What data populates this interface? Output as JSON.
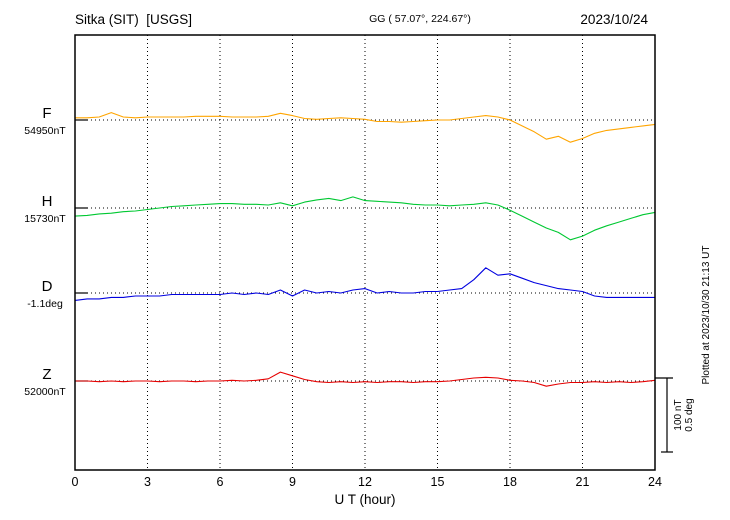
{
  "header": {
    "station": "Sitka (SIT)  [USGS]",
    "coords": "GG ( 57.07°, 224.67°)",
    "date": "2023/10/24"
  },
  "footer": {
    "xlabel": "U T (hour)",
    "plotted_at": "Plotted at 2023/10/30 21:13 UT"
  },
  "scale_bar": {
    "label_nt": "100 nT",
    "label_deg": "0.5 deg"
  },
  "chart_data": {
    "type": "line",
    "title": "Sitka (SIT) [USGS] magnetogram 2023/10/24",
    "x": {
      "label": "U T (hour)",
      "min": 0,
      "max": 24,
      "step_hours": 0.5,
      "ticks": [
        0,
        3,
        6,
        9,
        12,
        15,
        18,
        21,
        24
      ]
    },
    "scale": {
      "nT_per_div": 100,
      "deg_per_div": 0.5
    },
    "grid": "dotted-vertical-every-3h, dotted-baseline-per-trace",
    "series": [
      {
        "id": "F",
        "label": "F",
        "baseline_label": "54950nT",
        "units": "nT",
        "color": "#ffa500",
        "offsets": [
          3,
          3,
          4,
          10,
          4,
          3,
          4,
          4,
          4,
          4,
          5,
          5,
          5,
          4,
          4,
          4,
          5,
          9,
          6,
          2,
          1,
          2,
          3,
          2,
          1,
          -2,
          -2,
          -3,
          -2,
          -1,
          0,
          0,
          2,
          4,
          6,
          4,
          0,
          -8,
          -16,
          -26,
          -22,
          -30,
          -25,
          -18,
          -14,
          -12,
          -10,
          -8,
          -6
        ]
      },
      {
        "id": "H",
        "label": "H",
        "baseline_label": "15730nT",
        "units": "nT",
        "color": "#00c832",
        "offsets": [
          -11,
          -10,
          -8,
          -7,
          -5,
          -4,
          -2,
          0,
          2,
          3,
          4,
          5,
          6,
          6,
          5,
          5,
          4,
          7,
          3,
          8,
          11,
          13,
          10,
          15,
          10,
          9,
          8,
          7,
          5,
          4,
          4,
          3,
          4,
          5,
          7,
          4,
          -3,
          -11,
          -19,
          -27,
          -33,
          -43,
          -38,
          -30,
          -24,
          -19,
          -14,
          -9,
          -6
        ]
      },
      {
        "id": "D",
        "label": "D",
        "baseline_label": "-1.1deg",
        "units": "deg",
        "color": "#0000e0",
        "offsets": [
          -0.05,
          -0.04,
          -0.04,
          -0.03,
          -0.03,
          -0.02,
          -0.02,
          -0.02,
          -0.01,
          -0.01,
          -0.01,
          -0.01,
          -0.01,
          0,
          -0.01,
          0,
          -0.01,
          0.02,
          -0.02,
          0.02,
          0,
          0.01,
          0,
          0.02,
          0.03,
          0,
          0.01,
          0,
          0,
          0.01,
          0.01,
          0.02,
          0.03,
          0.09,
          0.17,
          0.12,
          0.13,
          0.1,
          0.07,
          0.05,
          0.03,
          0.02,
          0.01,
          -0.02,
          -0.03,
          -0.03,
          -0.03,
          -0.03,
          -0.03
        ]
      },
      {
        "id": "Z",
        "label": "Z",
        "baseline_label": "52000nT",
        "units": "nT",
        "color": "#e60000",
        "offsets": [
          0,
          0,
          -1,
          0,
          -1,
          0,
          0,
          -1,
          0,
          0,
          -1,
          0,
          0,
          1,
          0,
          1,
          3,
          12,
          7,
          2,
          -1,
          -2,
          -1,
          -2,
          -1,
          -2,
          -1,
          -1,
          -2,
          -1,
          -1,
          0,
          2,
          4,
          5,
          4,
          1,
          0,
          -2,
          -7,
          -4,
          -2,
          -2,
          -1,
          -2,
          -1,
          -2,
          -1,
          1
        ]
      }
    ]
  }
}
